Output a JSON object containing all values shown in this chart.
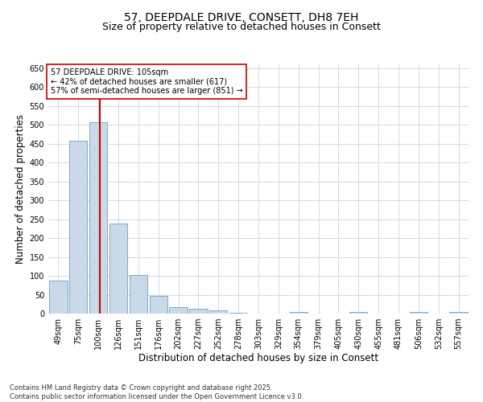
{
  "title_line1": "57, DEEPDALE DRIVE, CONSETT, DH8 7EH",
  "title_line2": "Size of property relative to detached houses in Consett",
  "xlabel": "Distribution of detached houses by size in Consett",
  "ylabel": "Number of detached properties",
  "categories": [
    "49sqm",
    "75sqm",
    "100sqm",
    "126sqm",
    "151sqm",
    "176sqm",
    "202sqm",
    "227sqm",
    "252sqm",
    "278sqm",
    "303sqm",
    "329sqm",
    "354sqm",
    "379sqm",
    "405sqm",
    "430sqm",
    "455sqm",
    "481sqm",
    "506sqm",
    "532sqm",
    "557sqm"
  ],
  "values": [
    88,
    458,
    507,
    238,
    103,
    47,
    17,
    12,
    8,
    3,
    0,
    0,
    4,
    0,
    0,
    4,
    0,
    0,
    4,
    0,
    4
  ],
  "bar_color": "#c9d9e8",
  "bar_edge_color": "#5b8ec4",
  "annotation_text": "57 DEEPDALE DRIVE: 105sqm\n← 42% of detached houses are smaller (617)\n57% of semi-detached houses are larger (851) →",
  "annotation_box_color": "#ffffff",
  "annotation_box_edge": "#cc0000",
  "annotation_text_color": "#000000",
  "vline_color": "#cc0000",
  "vline_x": 2.08,
  "ylim": [
    0,
    660
  ],
  "yticks": [
    0,
    50,
    100,
    150,
    200,
    250,
    300,
    350,
    400,
    450,
    500,
    550,
    600,
    650
  ],
  "footnote": "Contains HM Land Registry data © Crown copyright and database right 2025.\nContains public sector information licensed under the Open Government Licence v3.0.",
  "background_color": "#ffffff",
  "grid_color": "#c8d4e8",
  "title_fontsize": 10,
  "subtitle_fontsize": 9,
  "axis_label_fontsize": 8.5,
  "tick_fontsize": 7,
  "annotation_fontsize": 7,
  "footnote_fontsize": 6
}
